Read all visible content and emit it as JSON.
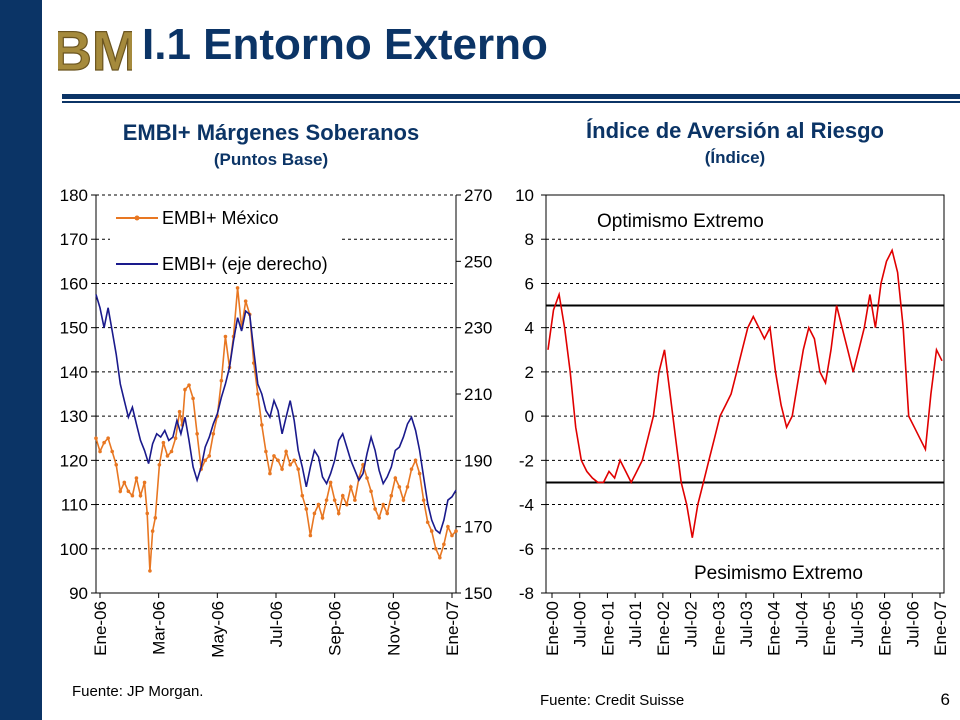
{
  "header": {
    "logo_letters": "BM",
    "title": "I.1 Entorno Externo",
    "page_number": "6"
  },
  "colors": {
    "navy": "#0b3466",
    "gold": "#a58a3c",
    "orange": "#e87722",
    "blue": "#1a1a8c",
    "red": "#e00000"
  },
  "chart_data": [
    {
      "type": "line",
      "title": "EMBI+ Márgenes Soberanos",
      "subtitle": "(Puntos Base)",
      "x_ticks": [
        "Ene-06",
        "Mar-06",
        "May-06",
        "Jul-06",
        "Sep-06",
        "Nov-06",
        "Ene-07"
      ],
      "y_left": {
        "ylim": [
          90,
          180
        ],
        "ticks": [
          90,
          100,
          110,
          120,
          130,
          140,
          150,
          160,
          170,
          180
        ]
      },
      "y_right": {
        "ylim": [
          150,
          270
        ],
        "ticks": [
          150,
          170,
          190,
          210,
          230,
          250,
          270
        ]
      },
      "legend": {
        "placement": "top-left",
        "entries": [
          "EMBI+ México",
          "EMBI+ (eje derecho)"
        ]
      },
      "grid": true,
      "series": [
        {
          "name": "EMBI+ México",
          "axis": "left",
          "color": "#e87722",
          "marker": "dot",
          "points": [
            [
              0,
              125
            ],
            [
              3,
              122
            ],
            [
              6,
              124
            ],
            [
              9,
              125
            ],
            [
              12,
              122
            ],
            [
              15,
              119
            ],
            [
              18,
              113
            ],
            [
              21,
              115
            ],
            [
              24,
              113
            ],
            [
              27,
              112
            ],
            [
              30,
              116
            ],
            [
              33,
              112
            ],
            [
              36,
              115
            ],
            [
              38,
              108
            ],
            [
              40,
              95
            ],
            [
              42,
              104
            ],
            [
              44,
              107
            ],
            [
              47,
              119
            ],
            [
              50,
              124
            ],
            [
              53,
              121
            ],
            [
              56,
              122
            ],
            [
              59,
              125
            ],
            [
              62,
              131
            ],
            [
              64,
              128
            ],
            [
              66,
              136
            ],
            [
              69,
              137
            ],
            [
              72,
              134
            ],
            [
              75,
              126
            ],
            [
              78,
              118
            ],
            [
              81,
              120
            ],
            [
              84,
              121
            ],
            [
              87,
              126
            ],
            [
              90,
              130
            ],
            [
              93,
              138
            ],
            [
              96,
              148
            ],
            [
              99,
              141
            ],
            [
              102,
              148
            ],
            [
              105,
              159
            ],
            [
              108,
              150
            ],
            [
              111,
              156
            ],
            [
              114,
              153
            ],
            [
              117,
              142
            ],
            [
              120,
              135
            ],
            [
              123,
              128
            ],
            [
              126,
              122
            ],
            [
              129,
              117
            ],
            [
              132,
              121
            ],
            [
              135,
              120
            ],
            [
              138,
              118
            ],
            [
              141,
              122
            ],
            [
              144,
              119
            ],
            [
              147,
              120
            ],
            [
              150,
              118
            ],
            [
              153,
              112
            ],
            [
              156,
              109
            ],
            [
              159,
              103
            ],
            [
              162,
              108
            ],
            [
              165,
              110
            ],
            [
              168,
              107
            ],
            [
              171,
              111
            ],
            [
              174,
              115
            ],
            [
              177,
              111
            ],
            [
              180,
              108
            ],
            [
              183,
              112
            ],
            [
              186,
              110
            ],
            [
              189,
              114
            ],
            [
              192,
              111
            ],
            [
              195,
              116
            ],
            [
              198,
              119
            ],
            [
              201,
              116
            ],
            [
              204,
              113
            ],
            [
              207,
              109
            ],
            [
              210,
              107
            ],
            [
              213,
              110
            ],
            [
              216,
              108
            ],
            [
              219,
              112
            ],
            [
              222,
              116
            ],
            [
              225,
              114
            ],
            [
              228,
              111
            ],
            [
              231,
              114
            ],
            [
              234,
              118
            ],
            [
              237,
              120
            ],
            [
              240,
              117
            ],
            [
              243,
              111
            ],
            [
              246,
              106
            ],
            [
              249,
              104
            ],
            [
              252,
              100
            ],
            [
              255,
              98
            ],
            [
              258,
              101
            ],
            [
              261,
              105
            ],
            [
              264,
              103
            ],
            [
              267,
              104
            ]
          ]
        },
        {
          "name": "EMBI+ (eje derecho)",
          "axis": "right",
          "color": "#1a1a8c",
          "marker": "none",
          "points": [
            [
              0,
              240
            ],
            [
              3,
              236
            ],
            [
              6,
              230
            ],
            [
              9,
              236
            ],
            [
              12,
              229
            ],
            [
              15,
              222
            ],
            [
              18,
              213
            ],
            [
              21,
              208
            ],
            [
              24,
              203
            ],
            [
              27,
              206
            ],
            [
              30,
              201
            ],
            [
              33,
              196
            ],
            [
              36,
              193
            ],
            [
              39,
              189
            ],
            [
              42,
              195
            ],
            [
              45,
              198
            ],
            [
              48,
              197
            ],
            [
              51,
              199
            ],
            [
              54,
              196
            ],
            [
              57,
              197
            ],
            [
              60,
              202
            ],
            [
              63,
              198
            ],
            [
              66,
              203
            ],
            [
              69,
              196
            ],
            [
              72,
              188
            ],
            [
              75,
              184
            ],
            [
              78,
              188
            ],
            [
              81,
              194
            ],
            [
              84,
              197
            ],
            [
              87,
              201
            ],
            [
              90,
              204
            ],
            [
              93,
              209
            ],
            [
              96,
              213
            ],
            [
              99,
              218
            ],
            [
              102,
              226
            ],
            [
              105,
              233
            ],
            [
              108,
              229
            ],
            [
              111,
              235
            ],
            [
              114,
              234
            ],
            [
              117,
              223
            ],
            [
              120,
              213
            ],
            [
              123,
              210
            ],
            [
              126,
              205
            ],
            [
              129,
              203
            ],
            [
              132,
              208
            ],
            [
              135,
              205
            ],
            [
              138,
              198
            ],
            [
              141,
              203
            ],
            [
              144,
              208
            ],
            [
              147,
              202
            ],
            [
              150,
              193
            ],
            [
              153,
              188
            ],
            [
              156,
              182
            ],
            [
              159,
              188
            ],
            [
              162,
              193
            ],
            [
              165,
              191
            ],
            [
              168,
              185
            ],
            [
              171,
              183
            ],
            [
              174,
              186
            ],
            [
              177,
              190
            ],
            [
              180,
              196
            ],
            [
              183,
              198
            ],
            [
              186,
              194
            ],
            [
              189,
              190
            ],
            [
              192,
              187
            ],
            [
              195,
              184
            ],
            [
              198,
              186
            ],
            [
              201,
              192
            ],
            [
              204,
              197
            ],
            [
              207,
              193
            ],
            [
              210,
              187
            ],
            [
              213,
              183
            ],
            [
              216,
              185
            ],
            [
              219,
              188
            ],
            [
              222,
              193
            ],
            [
              225,
              194
            ],
            [
              228,
              197
            ],
            [
              231,
              201
            ],
            [
              234,
              203
            ],
            [
              237,
              199
            ],
            [
              240,
              193
            ],
            [
              243,
              185
            ],
            [
              246,
              177
            ],
            [
              249,
              172
            ],
            [
              252,
              169
            ],
            [
              255,
              168
            ],
            [
              258,
              172
            ],
            [
              261,
              178
            ],
            [
              264,
              179
            ],
            [
              267,
              181
            ]
          ]
        }
      ]
    },
    {
      "type": "line",
      "title": "Índice de Aversión al Riesgo",
      "subtitle": "(Índice)",
      "x_ticks": [
        "Ene-00",
        "Jul-00",
        "Ene-01",
        "Jul-01",
        "Ene-02",
        "Jul-02",
        "Ene-03",
        "Jul-03",
        "Ene-04",
        "Jul-04",
        "Ene-05",
        "Jul-05",
        "Ene-06",
        "Jul-06",
        "Ene-07"
      ],
      "y_left": {
        "ylim": [
          -8,
          10
        ],
        "ticks": [
          -8,
          -6,
          -4,
          -2,
          0,
          2,
          4,
          6,
          8,
          10
        ]
      },
      "grid": true,
      "annotations": [
        "Optimismo Extremo",
        "Pesimismo Extremo"
      ],
      "threshold_lines": [
        5,
        -3
      ],
      "series": [
        {
          "name": "",
          "color": "#e00000",
          "marker": "none",
          "points": [
            [
              0,
              3
            ],
            [
              1,
              4.8
            ],
            [
              2,
              5.5
            ],
            [
              3,
              4
            ],
            [
              4,
              2
            ],
            [
              5,
              -0.5
            ],
            [
              6,
              -2
            ],
            [
              7,
              -2.5
            ],
            [
              8,
              -2.8
            ],
            [
              9,
              -3
            ],
            [
              10,
              -3
            ],
            [
              11,
              -2.5
            ],
            [
              12,
              -2.8
            ],
            [
              13,
              -2
            ],
            [
              14,
              -2.5
            ],
            [
              15,
              -3
            ],
            [
              16,
              -2.5
            ],
            [
              17,
              -2
            ],
            [
              18,
              -1
            ],
            [
              19,
              0
            ],
            [
              20,
              2
            ],
            [
              21,
              3
            ],
            [
              22,
              1
            ],
            [
              23,
              -1
            ],
            [
              24,
              -3
            ],
            [
              25,
              -4
            ],
            [
              26,
              -5.5
            ],
            [
              27,
              -4
            ],
            [
              28,
              -3
            ],
            [
              29,
              -2
            ],
            [
              30,
              -1
            ],
            [
              31,
              0
            ],
            [
              32,
              0.5
            ],
            [
              33,
              1
            ],
            [
              34,
              2
            ],
            [
              35,
              3
            ],
            [
              36,
              4
            ],
            [
              37,
              4.5
            ],
            [
              38,
              4
            ],
            [
              39,
              3.5
            ],
            [
              40,
              4
            ],
            [
              41,
              2
            ],
            [
              42,
              0.5
            ],
            [
              43,
              -0.5
            ],
            [
              44,
              0
            ],
            [
              45,
              1.5
            ],
            [
              46,
              3
            ],
            [
              47,
              4
            ],
            [
              48,
              3.5
            ],
            [
              49,
              2
            ],
            [
              50,
              1.5
            ],
            [
              51,
              3
            ],
            [
              52,
              5
            ],
            [
              53,
              4
            ],
            [
              54,
              3
            ],
            [
              55,
              2
            ],
            [
              56,
              3
            ],
            [
              57,
              4
            ],
            [
              58,
              5.5
            ],
            [
              59,
              4
            ],
            [
              60,
              6
            ],
            [
              61,
              7
            ],
            [
              62,
              7.5
            ],
            [
              63,
              6.5
            ],
            [
              64,
              4
            ],
            [
              65,
              0
            ],
            [
              66,
              -0.5
            ],
            [
              67,
              -1
            ],
            [
              68,
              -1.5
            ],
            [
              69,
              1
            ],
            [
              70,
              3
            ],
            [
              71,
              2.5
            ]
          ]
        }
      ]
    }
  ],
  "sources": {
    "left": "Fuente: JP Morgan.",
    "right": "Fuente: Credit Suisse"
  }
}
